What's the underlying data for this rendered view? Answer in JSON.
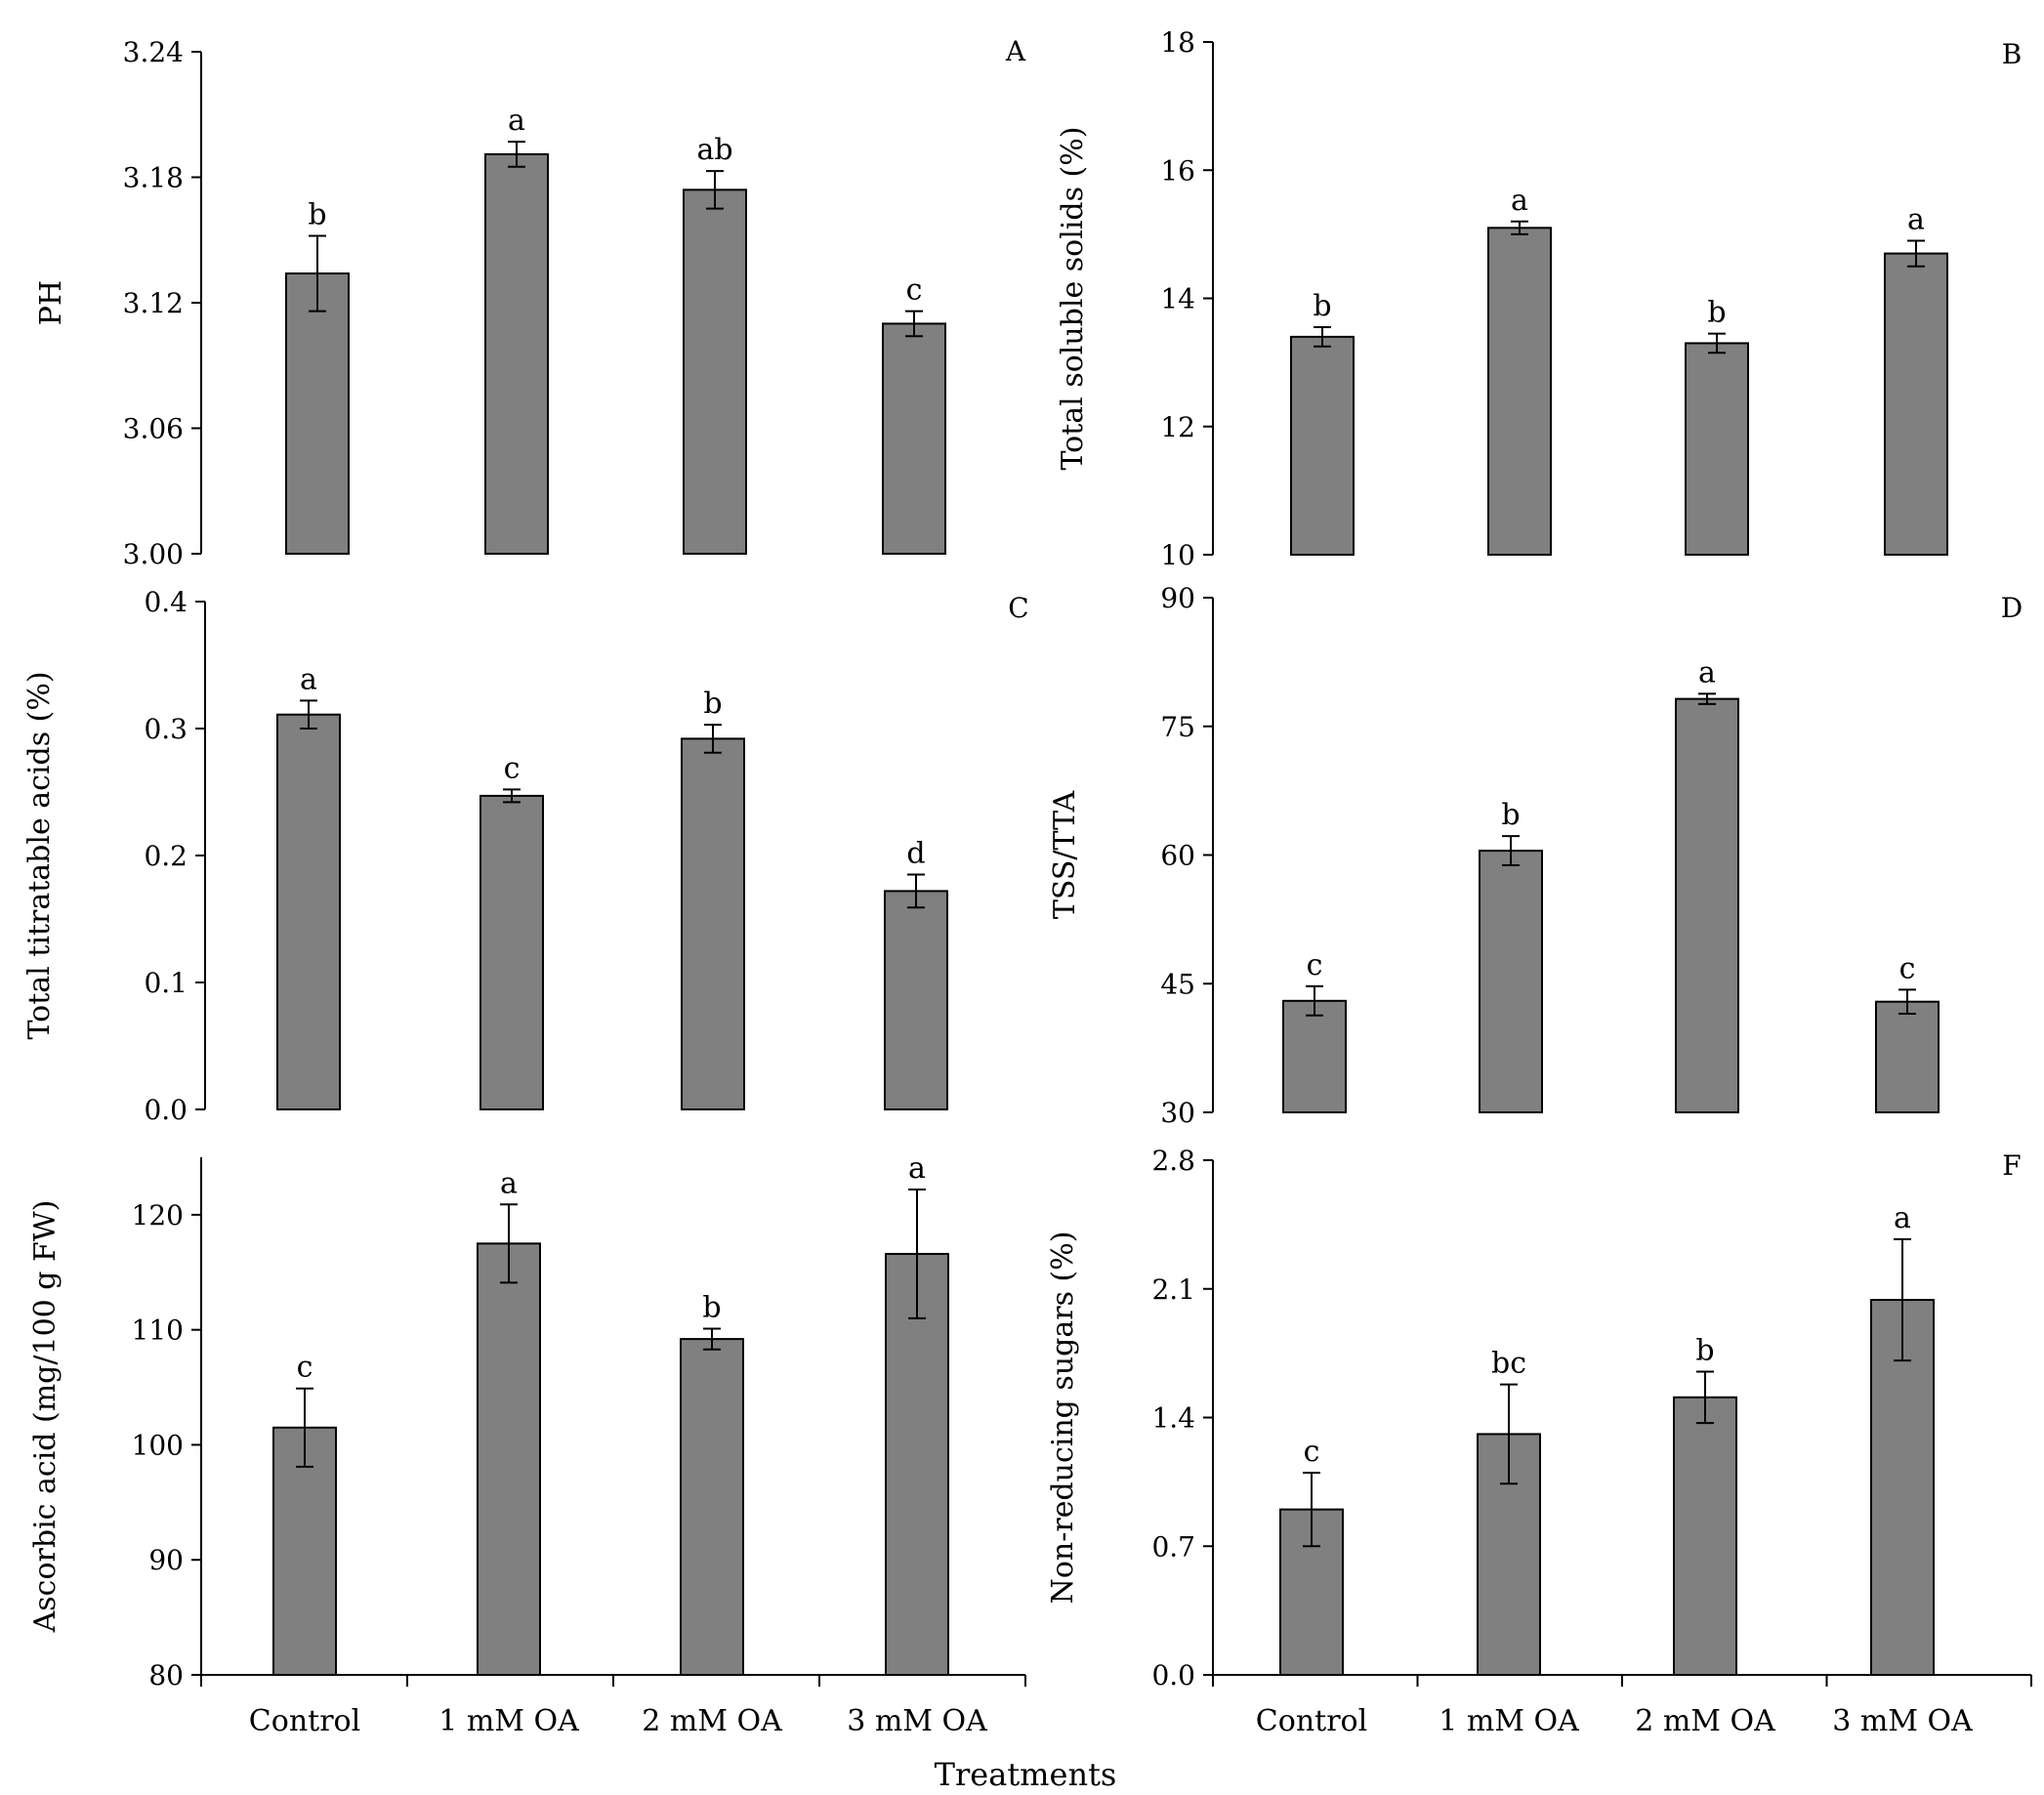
{
  "figure": {
    "x_title": "Treatments",
    "colors": {
      "bar_fill": "#808080",
      "bar_stroke": "#000000",
      "axis": "#000000"
    }
  },
  "chart_data": [
    {
      "type": "bar",
      "panel": "A",
      "ylabel": "PH",
      "ylim": [
        3.0,
        3.24
      ],
      "yticks": [
        "3.00",
        "3.06",
        "3.12",
        "3.18",
        "3.24"
      ],
      "categories": [
        "Control",
        "1 mM OA",
        "2 mM OA",
        "3 mM OA"
      ],
      "values": [
        3.134,
        3.191,
        3.174,
        3.11
      ],
      "errors": [
        0.018,
        0.006,
        0.009,
        0.006
      ],
      "letters": [
        "b",
        "a",
        "ab",
        "c"
      ],
      "show_xticklabels": false
    },
    {
      "type": "bar",
      "panel": "B",
      "ylabel": "Total soluble solids (%)",
      "ylim": [
        10,
        18
      ],
      "yticks": [
        "10",
        "12",
        "14",
        "16",
        "18"
      ],
      "categories": [
        "Control",
        "1 mM OA",
        "2 mM OA",
        "3 mM OA"
      ],
      "values": [
        13.4,
        15.1,
        13.3,
        14.7
      ],
      "errors": [
        0.15,
        0.1,
        0.15,
        0.2
      ],
      "letters": [
        "b",
        "a",
        "b",
        "a"
      ],
      "show_xticklabels": false
    },
    {
      "type": "bar",
      "panel": "C",
      "ylabel": "Total titratable acids  (%)",
      "ylim": [
        0.0,
        0.4
      ],
      "yticks": [
        "0.0",
        "0.1",
        "0.2",
        "0.3",
        "0.4"
      ],
      "categories": [
        "Control",
        "1 mM OA",
        "2 mM OA",
        "3 mM OA"
      ],
      "values": [
        0.311,
        0.247,
        0.292,
        0.172
      ],
      "errors": [
        0.011,
        0.005,
        0.011,
        0.013
      ],
      "letters": [
        "a",
        "c",
        "b",
        "d"
      ],
      "show_xticklabels": false
    },
    {
      "type": "bar",
      "panel": "D",
      "ylabel": "TSS/TTA",
      "ylim": [
        30,
        90
      ],
      "yticks": [
        "30",
        "45",
        "60",
        "75",
        "90"
      ],
      "categories": [
        "Control",
        "1 mM OA",
        "2 mM OA",
        "3 mM OA"
      ],
      "values": [
        43.0,
        60.5,
        78.2,
        42.9
      ],
      "errors": [
        1.7,
        1.7,
        0.6,
        1.4
      ],
      "letters": [
        "c",
        "b",
        "a",
        "c"
      ],
      "show_xticklabels": false
    },
    {
      "type": "bar",
      "panel": "",
      "ylabel": "Ascorbic acid (mg/100 g FW)",
      "ylim": [
        80,
        125
      ],
      "yticks": [
        "80",
        "90",
        "100",
        "110",
        "120"
      ],
      "categories": [
        "Control",
        "1 mM OA",
        "2 mM OA",
        "3 mM OA"
      ],
      "values": [
        101.5,
        117.5,
        109.2,
        116.6
      ],
      "errors": [
        3.4,
        3.4,
        0.9,
        5.6
      ],
      "letters": [
        "c",
        "a",
        "b",
        "a"
      ],
      "show_xticklabels": true
    },
    {
      "type": "bar",
      "panel": "F",
      "ylabel": "Non-reducing sugars (%)",
      "ylim": [
        0.0,
        2.8
      ],
      "yticks": [
        "0.0",
        "0.7",
        "1.4",
        "2.1",
        "2.8"
      ],
      "categories": [
        "Control",
        "1 mM OA",
        "2 mM OA",
        "3 mM OA"
      ],
      "values": [
        0.9,
        1.31,
        1.51,
        2.04
      ],
      "errors": [
        0.2,
        0.27,
        0.14,
        0.33
      ],
      "letters": [
        "c",
        "bc",
        "b",
        "a"
      ],
      "show_xticklabels": true
    }
  ]
}
